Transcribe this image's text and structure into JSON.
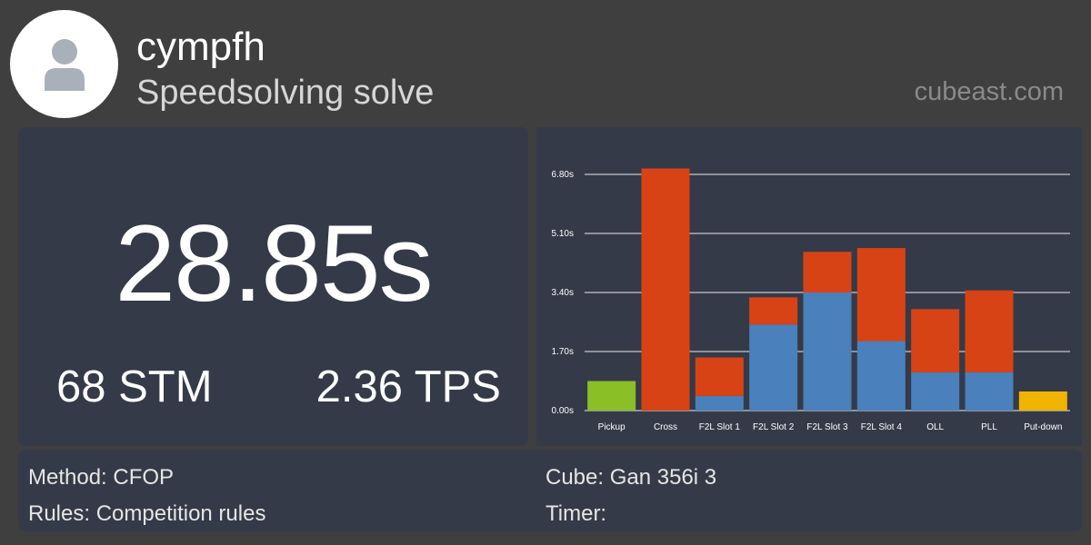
{
  "header": {
    "username": "cympfh",
    "subtitle": "Speedsolving solve",
    "site": "cubeast.com",
    "avatar_icon": "user-silhouette-icon"
  },
  "stats": {
    "time": "28.85s",
    "stm": "68 STM",
    "tps": "2.36 TPS"
  },
  "info": {
    "method_label": "Method:",
    "method_value": "CFOP",
    "cube_label": "Cube:",
    "cube_value": "Gan 356i 3",
    "rules_label": "Rules:",
    "rules_value": "Competition rules",
    "timer_label": "Timer:",
    "timer_value": ""
  },
  "colors": {
    "recognition": "#d84315",
    "execution": "#4a80bb",
    "pickup": "#8bbf26",
    "putdown": "#f0b400",
    "grid": "#ffffff",
    "text": "#ffffff"
  },
  "chart_data": {
    "type": "bar",
    "stacked": true,
    "categories": [
      "Pickup",
      "Cross",
      "F2L Slot 1",
      "F2L Slot 2",
      "F2L Slot 3",
      "F2L Slot 4",
      "OLL",
      "PLL",
      "Put-down"
    ],
    "series": [
      {
        "values": [
          0.85,
          0,
          0.42,
          2.48,
          3.4,
          2.0,
          1.1,
          1.1,
          0.55
        ],
        "color_key": "execution"
      },
      {
        "values": [
          0,
          6.97,
          1.11,
          0.78,
          1.17,
          2.68,
          1.82,
          2.36,
          0
        ],
        "color_key": "recognition"
      }
    ],
    "bar_color_override": {
      "Pickup": "pickup",
      "Put-down": "putdown"
    },
    "yticks": [
      "0.00s",
      "1.70s",
      "3.40s",
      "5.10s",
      "6.80s"
    ],
    "ytick_values": [
      0,
      1.7,
      3.4,
      5.1,
      6.8
    ],
    "ylim": [
      0,
      6.8
    ],
    "grid": true,
    "legend": "none"
  }
}
